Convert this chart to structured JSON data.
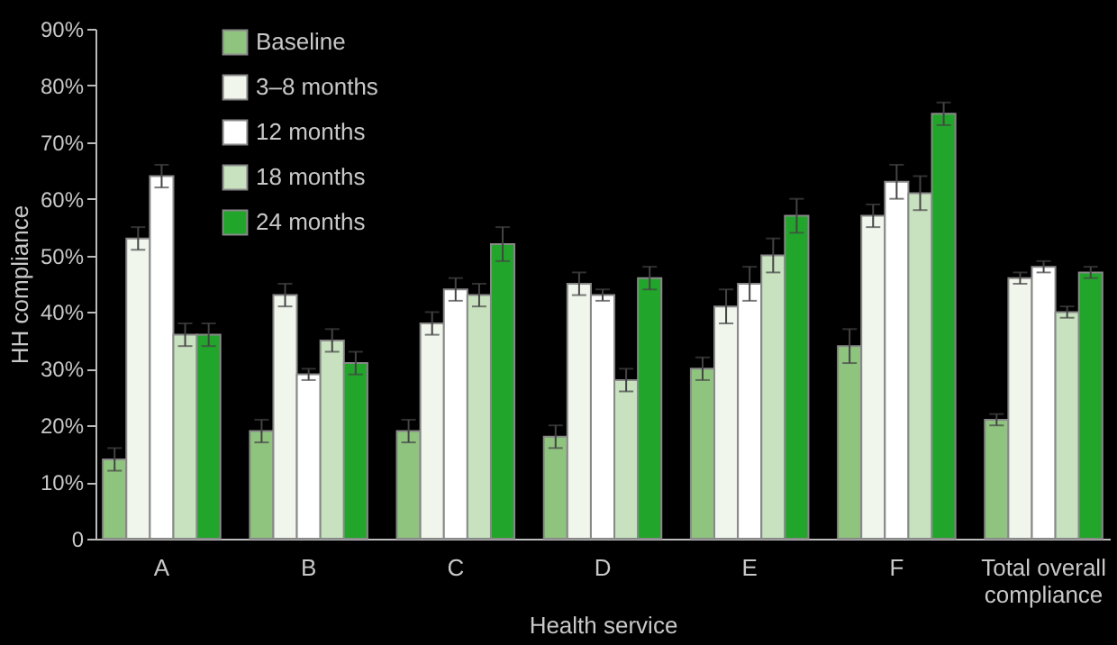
{
  "chart_data": {
    "type": "bar",
    "xlabel": "Health service",
    "ylabel": "HH compliance",
    "categories": [
      "A",
      "B",
      "C",
      "D",
      "E",
      "F",
      "Total overall compliance"
    ],
    "series": [
      {
        "name": "Baseline",
        "color": "#8fc47f",
        "values": [
          14,
          19,
          19,
          18,
          30,
          34,
          21
        ],
        "errors": [
          2,
          2,
          2,
          2,
          2,
          3,
          1
        ]
      },
      {
        "name": "3–8 months",
        "color": "#f0f6ec",
        "values": [
          53,
          43,
          38,
          45,
          41,
          57,
          46
        ],
        "errors": [
          2,
          2,
          2,
          2,
          3,
          2,
          1
        ]
      },
      {
        "name": "12 months",
        "color": "#ffffff",
        "values": [
          64,
          29,
          44,
          43,
          45,
          63,
          48
        ],
        "errors": [
          2,
          1,
          2,
          1,
          3,
          3,
          1
        ]
      },
      {
        "name": "18 months",
        "color": "#c8e2c0",
        "values": [
          36,
          35,
          43,
          28,
          50,
          61,
          40
        ],
        "errors": [
          2,
          2,
          2,
          2,
          3,
          3,
          1
        ]
      },
      {
        "name": "24 months",
        "color": "#22a52b",
        "values": [
          36,
          31,
          52,
          46,
          57,
          75,
          47
        ],
        "errors": [
          2,
          2,
          3,
          2,
          3,
          2,
          1
        ]
      }
    ],
    "ylim": [
      0,
      90
    ],
    "yticks": [
      {
        "value": 0,
        "label": "0"
      },
      {
        "value": 10,
        "label": "10%"
      },
      {
        "value": 20,
        "label": "20%"
      },
      {
        "value": 30,
        "label": "30%"
      },
      {
        "value": 40,
        "label": "40%"
      },
      {
        "value": 50,
        "label": "50%"
      },
      {
        "value": 60,
        "label": "60%"
      },
      {
        "value": 70,
        "label": "70%"
      },
      {
        "value": 80,
        "label": "80%"
      },
      {
        "value": 90,
        "label": "90%"
      }
    ],
    "grid": false,
    "legend": "top left"
  }
}
